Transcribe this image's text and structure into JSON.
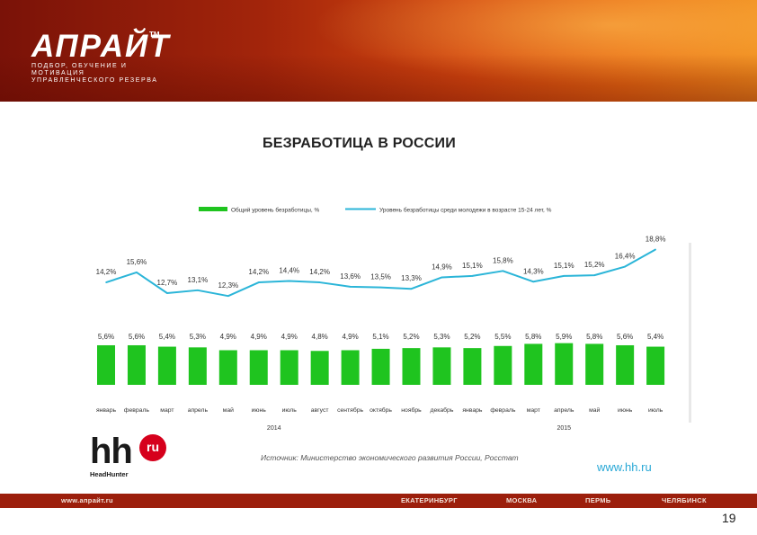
{
  "header": {
    "logo_word": "АПРАЙТ",
    "logo_tm": "TM",
    "logo_tagline": "ПОДБОР, ОБУЧЕНИЕ И МОТИВАЦИЯ УПРАВЛЕНЧЕСКОГО РЕЗЕРВА"
  },
  "page_title": "БЕЗРАБОТИЦА В РОССИИ",
  "chart_data": {
    "type": "bar",
    "categories": [
      "январь",
      "февраль",
      "март",
      "апрель",
      "май",
      "июнь",
      "июль",
      "август",
      "сентябрь",
      "октябрь",
      "ноябрь",
      "декабрь",
      "январь",
      "февраль",
      "март",
      "апрель",
      "май",
      "июнь",
      "июль"
    ],
    "year_labels": [
      {
        "label": "2014",
        "index": 5.5
      },
      {
        "label": "2015",
        "index": 15
      }
    ],
    "series": [
      {
        "name": "Общий уровень безработицы, %",
        "kind": "bar",
        "color": "#1fc41f",
        "values": [
          5.6,
          5.6,
          5.4,
          5.3,
          4.9,
          4.9,
          4.9,
          4.8,
          4.9,
          5.1,
          5.2,
          5.3,
          5.2,
          5.5,
          5.8,
          5.9,
          5.8,
          5.6,
          5.4
        ],
        "labels": [
          "5,6%",
          "5,6%",
          "5,4%",
          "5,3%",
          "4,9%",
          "4,9%",
          "4,9%",
          "4,8%",
          "4,9%",
          "5,1%",
          "5,2%",
          "5,3%",
          "5,2%",
          "5,5%",
          "5,8%",
          "5,9%",
          "5,8%",
          "5,6%",
          "5,4%"
        ]
      },
      {
        "name": "Уровень безработицы среди молодежи в возрасте 15-24 лет, %",
        "kind": "line",
        "color": "#2bb5d8",
        "values": [
          14.2,
          15.6,
          12.7,
          13.1,
          12.3,
          14.2,
          14.4,
          14.2,
          13.6,
          13.5,
          13.3,
          14.9,
          15.1,
          15.8,
          14.3,
          15.1,
          15.2,
          16.4,
          18.8
        ],
        "labels": [
          "14,2%",
          "15,6%",
          "12,7%",
          "13,1%",
          "12,3%",
          "14,2%",
          "14,4%",
          "14,2%",
          "13,6%",
          "13,5%",
          "13,3%",
          "14,9%",
          "15,1%",
          "15,8%",
          "14,3%",
          "15,1%",
          "15,2%",
          "16,4%",
          "18,8%"
        ]
      }
    ],
    "legend_position": "top",
    "grid": false
  },
  "source_note": "Источник: Министерство экономического развития России, Росстат",
  "hh_logo": {
    "hh": "hh",
    "ru": "ru",
    "brand": "HeadHunter"
  },
  "site_link": "www.hh.ru",
  "footer": {
    "site": "www.апрайт.ru",
    "cities": [
      "ЕКАТЕРИНБУРГ",
      "МОСКВА",
      "ПЕРМЬ",
      "ЧЕЛЯБИНСК"
    ]
  },
  "page_number": "19"
}
